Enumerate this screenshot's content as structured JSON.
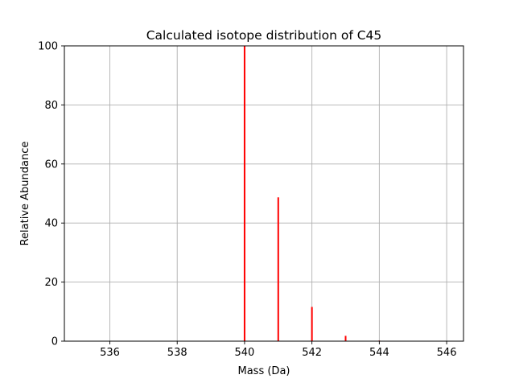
{
  "chart_data": {
    "type": "bar",
    "title": "Calculated isotope distribution of C45",
    "xlabel": "Mass (Da)",
    "ylabel": "Relative Abundance",
    "xlim": [
      534.65,
      546.5
    ],
    "ylim": [
      0,
      100
    ],
    "xticks": [
      536,
      538,
      540,
      542,
      544,
      546
    ],
    "yticks": [
      0,
      20,
      40,
      60,
      80,
      100
    ],
    "grid": true,
    "bar_color": "#ff0000",
    "x": [
      540,
      541,
      542,
      543,
      544,
      545
    ],
    "values": [
      100,
      48.7,
      11.6,
      1.8,
      0.2,
      0.1
    ]
  }
}
